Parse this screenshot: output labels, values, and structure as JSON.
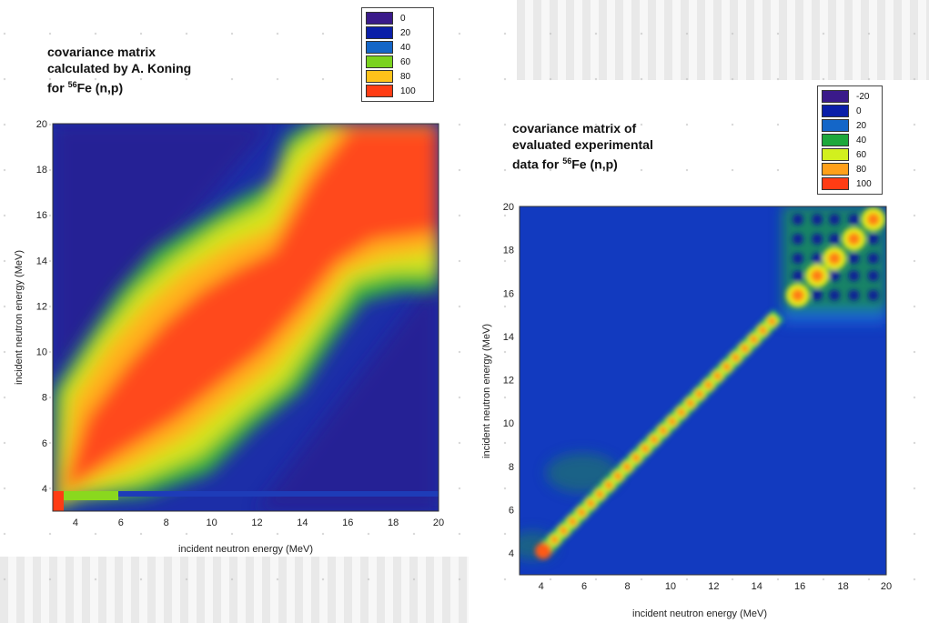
{
  "chart_data": [
    {
      "type": "heatmap",
      "title_line1": "covariance matrix",
      "title_line2": "calculated by A. Koning",
      "title_line3_prefix": "for ",
      "title_isotope_mass": "56",
      "title_line3_suffix": "Fe (n,p)",
      "xlabel": "incident neutron energy (MeV)",
      "ylabel": "incident neutron energy (MeV)",
      "xlim": [
        3,
        20
      ],
      "ylim": [
        3,
        20
      ],
      "ticks": [
        4,
        6,
        8,
        10,
        12,
        14,
        16,
        18,
        20
      ],
      "legend": [
        {
          "label": "0",
          "color": "#3a1a8a"
        },
        {
          "label": "20",
          "color": "#0a1ea8"
        },
        {
          "label": "40",
          "color": "#1466c8"
        },
        {
          "label": "60",
          "color": "#7ad21e"
        },
        {
          "label": "80",
          "color": "#ffc21a"
        },
        {
          "label": "100",
          "color": "#ff3c14"
        }
      ]
    },
    {
      "type": "heatmap",
      "title_line1": "covariance matrix of",
      "title_line2": "evaluated experimental",
      "title_line3_prefix": "data for ",
      "title_isotope_mass": "56",
      "title_line3_suffix": "Fe (n,p)",
      "xlabel": "incident neutron energy (MeV)",
      "ylabel": "incident neutron energy (MeV)",
      "xlim": [
        3,
        20
      ],
      "ylim": [
        3,
        20
      ],
      "ticks": [
        4,
        6,
        8,
        10,
        12,
        14,
        16,
        18,
        20
      ],
      "legend": [
        {
          "label": "-20",
          "color": "#3a1a8a"
        },
        {
          "label": "0",
          "color": "#0a1ea8"
        },
        {
          "label": "20",
          "color": "#1466c8"
        },
        {
          "label": "40",
          "color": "#1ea83c"
        },
        {
          "label": "60",
          "color": "#d2f01e"
        },
        {
          "label": "80",
          "color": "#ffa01a"
        },
        {
          "label": "100",
          "color": "#ff3c14"
        }
      ]
    }
  ]
}
